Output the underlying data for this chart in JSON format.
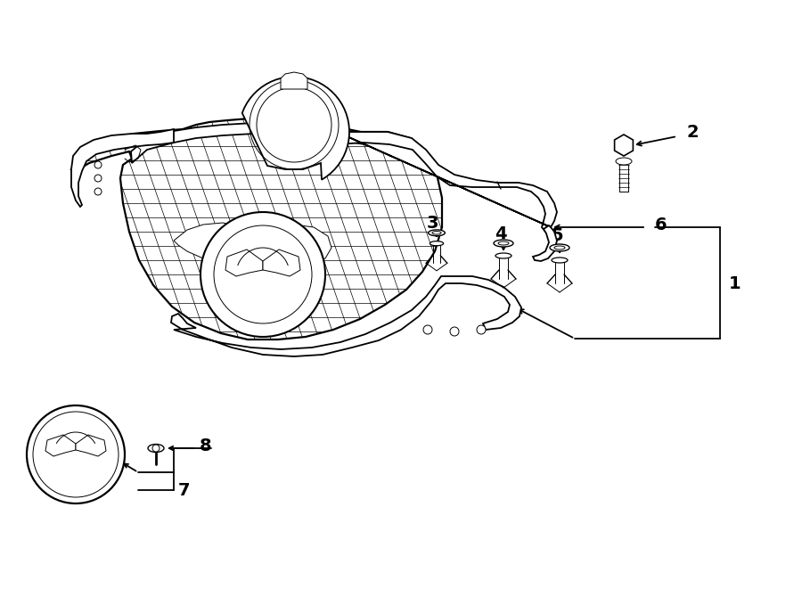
{
  "bg_color": "#ffffff",
  "line_color": "#000000",
  "lw_main": 1.3,
  "lw_thin": 0.7,
  "lw_mesh": 0.5,
  "fig_width": 9.0,
  "fig_height": 6.61,
  "dpi": 100,
  "font_size": 14,
  "font_size_sm": 11
}
